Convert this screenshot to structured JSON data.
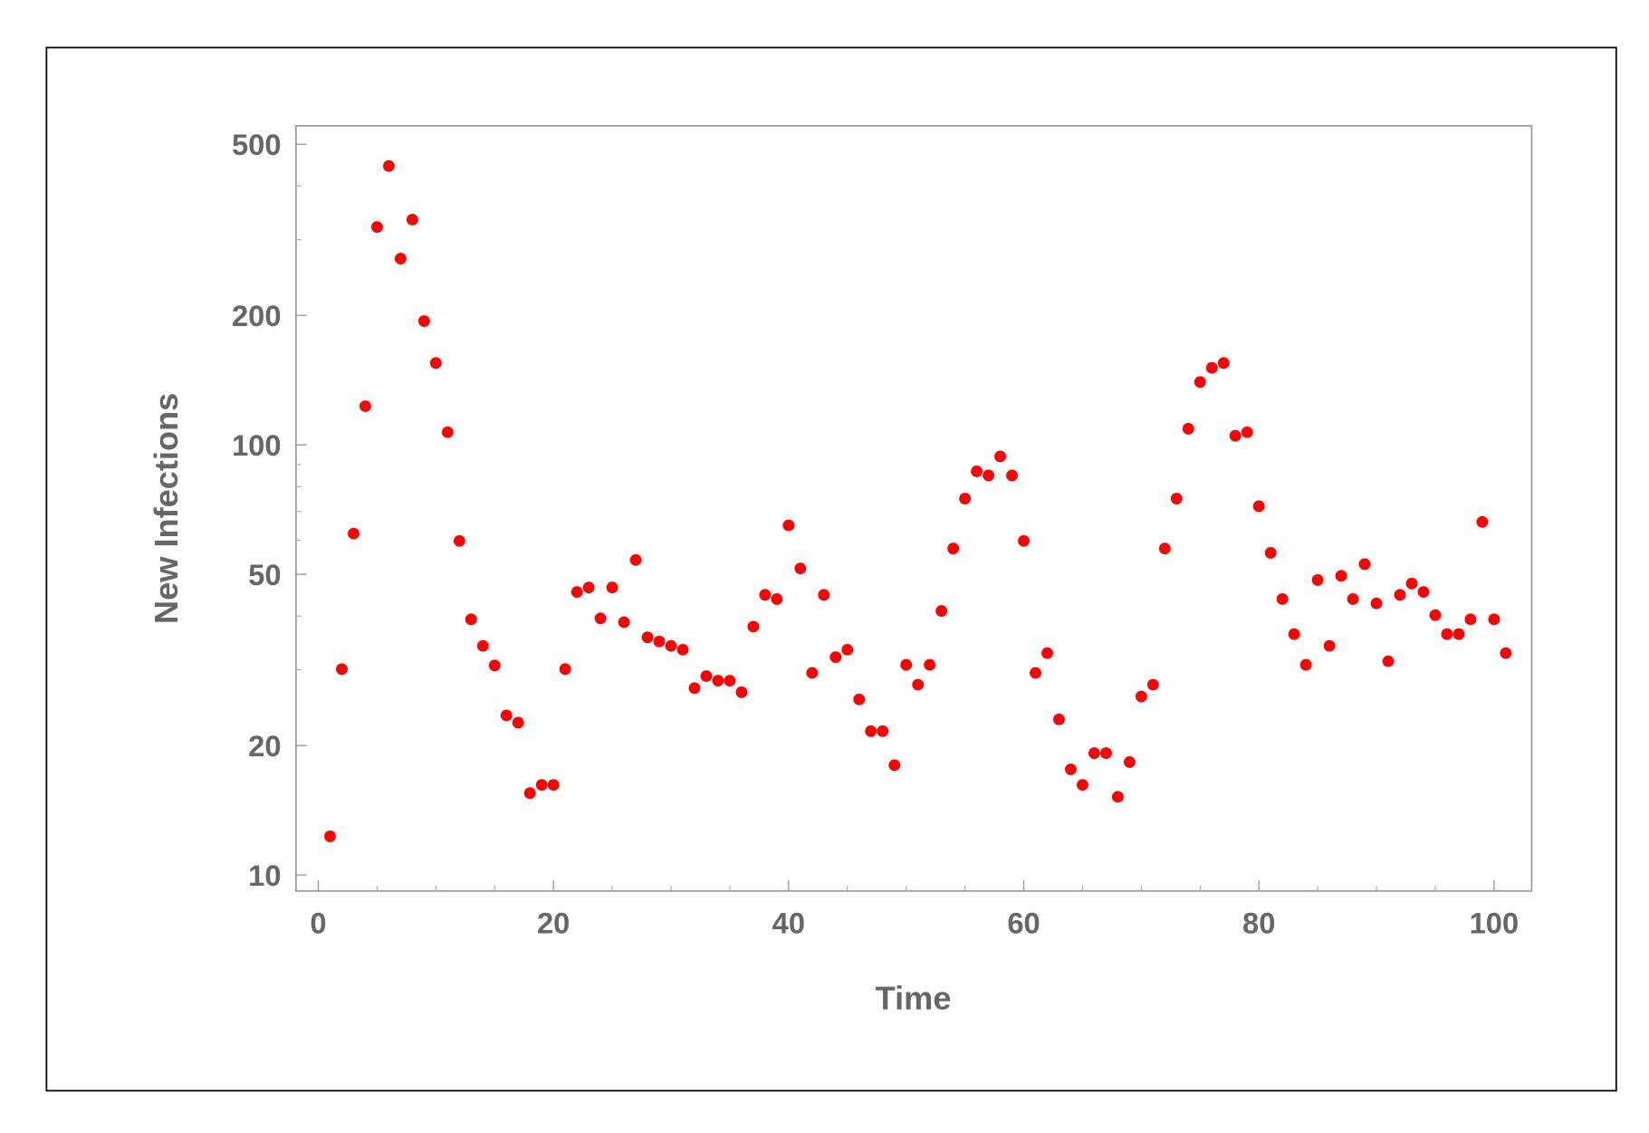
{
  "chart_data": {
    "type": "scatter",
    "x_label": "Time",
    "y_label": "New Infections",
    "log_y": true,
    "color": "#ff0000",
    "xlim": [
      -1.9,
      103.2
    ],
    "ylim": [
      9.18,
      552
    ],
    "xticks": [
      0,
      20,
      40,
      60,
      80,
      100
    ],
    "yticks": [
      10,
      20,
      50,
      100,
      200,
      500
    ],
    "x_minor_ticks": [
      5,
      10,
      15,
      25,
      30,
      35,
      45,
      50,
      55,
      65,
      70,
      75,
      85,
      90,
      95
    ],
    "y_minor_ticks": [
      30,
      40,
      60,
      70,
      80,
      90,
      300,
      400
    ],
    "x": [
      1,
      2,
      3,
      4,
      5,
      6,
      7,
      8,
      9,
      10,
      11,
      12,
      13,
      14,
      15,
      16,
      17,
      18,
      19,
      20,
      21,
      22,
      23,
      24,
      25,
      26,
      27,
      28,
      29,
      30,
      31,
      32,
      33,
      34,
      35,
      36,
      37,
      38,
      39,
      40,
      41,
      42,
      43,
      44,
      45,
      46,
      47,
      48,
      49,
      50,
      51,
      52,
      53,
      54,
      55,
      56,
      57,
      58,
      59,
      60,
      61,
      62,
      63,
      64,
      65,
      66,
      67,
      68,
      69,
      70,
      71,
      72,
      73,
      74,
      75,
      76,
      77,
      78,
      79,
      80,
      81,
      82,
      83,
      84,
      85,
      86,
      87,
      88,
      89,
      90,
      91,
      92,
      93,
      94,
      95,
      96,
      97,
      98,
      99,
      100,
      101
    ],
    "values": [
      12.3,
      30.1,
      62.2,
      123,
      321,
      445,
      271,
      334,
      194,
      155,
      107,
      59.8,
      39.3,
      34.1,
      30.7,
      23.5,
      22.6,
      15.5,
      16.2,
      16.2,
      30.1,
      45.5,
      46.6,
      39.5,
      46.6,
      38.7,
      54,
      35.7,
      34.9,
      34.1,
      33.4,
      27.2,
      29,
      28.3,
      28.3,
      26.6,
      37.8,
      44.8,
      43.8,
      65,
      51.6,
      29.5,
      44.8,
      32.1,
      33.4,
      25.6,
      21.6,
      21.6,
      18,
      30.8,
      27.7,
      30.8,
      41.1,
      57.4,
      75,
      86.8,
      84.9,
      94,
      84.9,
      59.8,
      29.5,
      32.8,
      23,
      17.6,
      16.2,
      19.2,
      19.2,
      15.2,
      18.3,
      26,
      27.7,
      57.4,
      75,
      109,
      140,
      151,
      155,
      105,
      107,
      72,
      56.1,
      43.8,
      36.3,
      30.8,
      48.5,
      34.1,
      49.6,
      43.8,
      52.8,
      42.8,
      31.4,
      44.8,
      47.6,
      45.5,
      40.2,
      36.3,
      36.3,
      39.3,
      66.2,
      39.3,
      32.8
    ]
  }
}
